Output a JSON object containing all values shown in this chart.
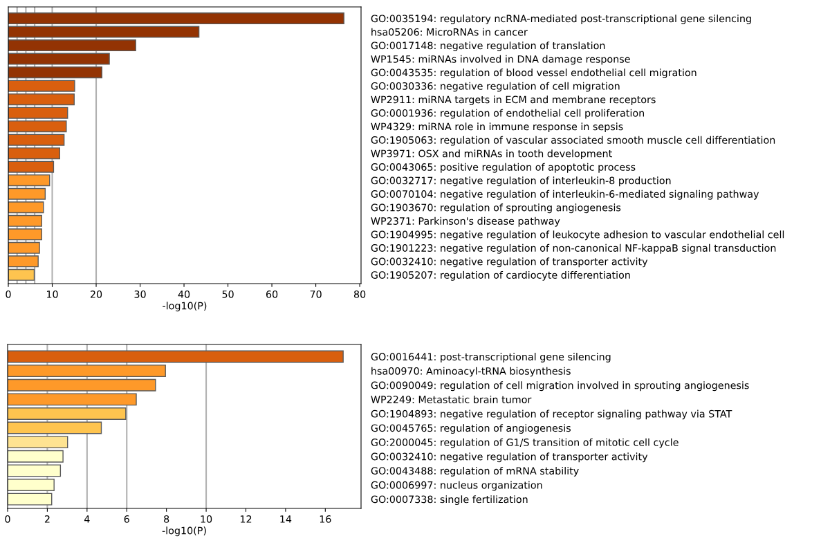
{
  "chart_data": [
    {
      "type": "bar",
      "orientation": "horizontal",
      "xlabel": "-log10(P)",
      "categories": [
        "GO:0035194: regulatory ncRNA-mediated post-transcriptional gene silencing",
        "hsa05206: MicroRNAs in cancer",
        "GO:0017148: negative regulation of translation",
        "WP1545: miRNAs involved in DNA damage response",
        "GO:0043535: regulation of blood vessel endothelial cell migration",
        "GO:0030336: negative regulation of cell migration",
        "WP2911: miRNA targets in ECM and membrane receptors",
        "GO:0001936: regulation of endothelial cell proliferation",
        "WP4329: miRNA role in immune response in sepsis",
        "GO:1905063: regulation of vascular associated smooth muscle cell differentiation",
        "WP3971: OSX and miRNAs in tooth development",
        "GO:0043065: positive regulation of apoptotic process",
        "GO:0032717: negative regulation of interleukin-8 production",
        "GO:0070104: negative regulation of interleukin-6-mediated signaling pathway",
        "GO:1903670: regulation of sprouting angiogenesis",
        "WP2371: Parkinson's disease pathway",
        "GO:1904995: negative regulation of leukocyte adhesion to vascular endothelial cell",
        "GO:1901223: negative regulation of non-canonical NF-kappaB signal transduction",
        "GO:0032410: negative regulation of transporter activity",
        "GO:1905207: regulation of cardiocyte differentiation"
      ],
      "values": [
        76.4,
        43.4,
        29.0,
        23.0,
        21.3,
        15.1,
        15.0,
        13.5,
        13.2,
        12.7,
        11.7,
        10.3,
        9.4,
        8.4,
        8.0,
        7.6,
        7.6,
        7.1,
        6.8,
        5.9
      ],
      "colors": [
        "#933303",
        "#933303",
        "#933303",
        "#933303",
        "#933303",
        "#d95f0e",
        "#d95f0e",
        "#d95f0e",
        "#d95f0e",
        "#d95f0e",
        "#d95f0e",
        "#d95f0e",
        "#fe9929",
        "#fe9929",
        "#fe9929",
        "#fe9929",
        "#fe9929",
        "#fe9929",
        "#fe9929",
        "#fec44f"
      ],
      "xlim": [
        0,
        80.3
      ],
      "xticks": [
        0,
        10,
        20,
        30,
        40,
        50,
        60,
        70,
        80
      ],
      "ref_lines": [
        {
          "axis": "x",
          "value": 2,
          "color": "#b0b0b0"
        },
        {
          "axis": "x",
          "value": 4,
          "color": "#b0b0b0"
        },
        {
          "axis": "x",
          "value": 6,
          "color": "#b0b0b0"
        },
        {
          "axis": "x",
          "value": 10,
          "color": "#b0b0b0"
        },
        {
          "axis": "x",
          "value": 20,
          "color": "#b0b0b0"
        }
      ]
    },
    {
      "type": "bar",
      "orientation": "horizontal",
      "xlabel": "-log10(P)",
      "categories": [
        "GO:0016441: post-transcriptional gene silencing",
        "hsa00970: Aminoacyl-tRNA biosynthesis",
        "GO:0090049: regulation of cell migration involved in sprouting angiogenesis",
        "WP2249: Metastatic brain tumor",
        "GO:1904893: negative regulation of receptor signaling pathway via STAT",
        "GO:0045765: regulation of angiogenesis",
        "GO:2000045: regulation of G1/S transition of mitotic cell cycle",
        "GO:0032410: negative regulation of transporter activity",
        "GO:0043488: regulation of mRNA stability",
        "GO:0006997: nucleus organization",
        "GO:0007338: single fertilization"
      ],
      "values": [
        16.9,
        7.95,
        7.45,
        6.48,
        5.95,
        4.72,
        3.02,
        2.79,
        2.66,
        2.34,
        2.22
      ],
      "colors": [
        "#d95f0e",
        "#fe9929",
        "#fe9929",
        "#fe9929",
        "#fec44f",
        "#fec44f",
        "#fee391",
        "#ffffcc",
        "#ffffcc",
        "#ffffcc",
        "#ffffcc"
      ],
      "xlim": [
        0,
        17.8
      ],
      "xticks": [
        0,
        2,
        4,
        6,
        8,
        10,
        12,
        14,
        16
      ],
      "ref_lines": [
        {
          "axis": "x",
          "value": 2,
          "color": "#b0b0b0"
        },
        {
          "axis": "x",
          "value": 4,
          "color": "#b0b0b0"
        },
        {
          "axis": "x",
          "value": 6,
          "color": "#b0b0b0"
        },
        {
          "axis": "x",
          "value": 10,
          "color": "#b0b0b0"
        }
      ]
    }
  ]
}
